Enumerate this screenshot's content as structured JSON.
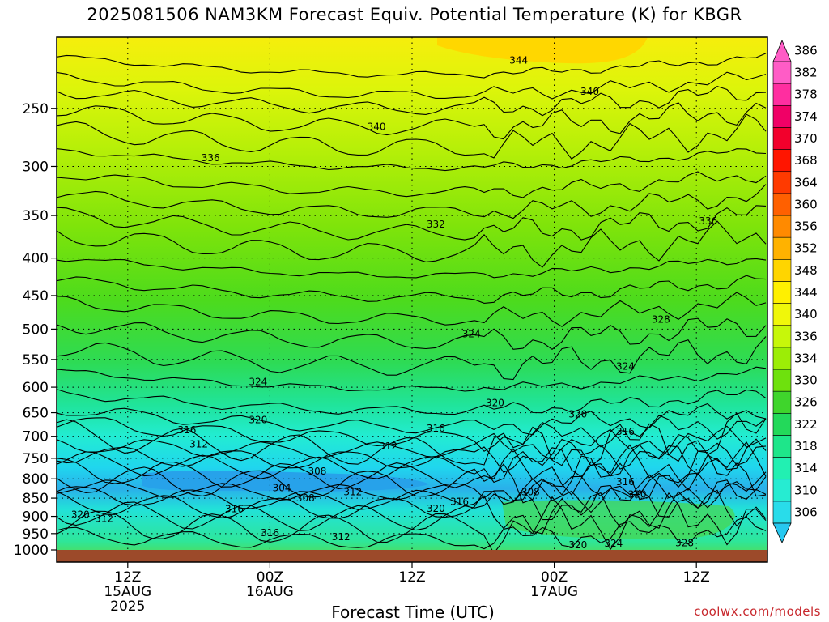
{
  "chart_data": {
    "type": "contour",
    "title": "2025081506 NAM3KM Forecast Equiv. Potential Temperature (K) for KBGR",
    "xlabel": "Forecast Time (UTC)",
    "ylabel": "",
    "y_scale": "log",
    "y_axis": "pressure (hPa), inverted",
    "ylim": [
      1000,
      200
    ],
    "y_ticks": [
      250,
      300,
      350,
      400,
      450,
      500,
      550,
      600,
      650,
      700,
      750,
      800,
      850,
      900,
      950,
      1000
    ],
    "x_ticks": [
      {
        "hour": 12,
        "line1": "12Z",
        "line2": "15AUG",
        "line3": "2025"
      },
      {
        "hour": 24,
        "line1": "00Z",
        "line2": "16AUG",
        "line3": ""
      },
      {
        "hour": 36,
        "line1": "12Z",
        "line2": "",
        "line3": ""
      },
      {
        "hour": 48,
        "line1": "00Z",
        "line2": "17AUG",
        "line3": ""
      },
      {
        "hour": 60,
        "line1": "12Z",
        "line2": "",
        "line3": ""
      }
    ],
    "xlim": [
      6,
      66
    ],
    "grid": true,
    "colorbar": {
      "levels": [
        306,
        310,
        314,
        318,
        322,
        326,
        330,
        334,
        336,
        340,
        344,
        348,
        352,
        356,
        360,
        364,
        368,
        370,
        374,
        378,
        382,
        386
      ],
      "colors": [
        "#27c8f0",
        "#29dcea",
        "#26ecd2",
        "#22f0b2",
        "#1ee68a",
        "#23d95a",
        "#3fd52c",
        "#6ee10d",
        "#9ced06",
        "#c7f70a",
        "#f0f70a",
        "#fff000",
        "#ffd500",
        "#ffb200",
        "#ff8a00",
        "#ff6000",
        "#ff3a00",
        "#ff1500",
        "#f2002c",
        "#f00066",
        "#ff2ea0",
        "#ff5cc6"
      ]
    },
    "contour_labels": [
      {
        "value": "344",
        "hour": 45,
        "p": 215
      },
      {
        "value": "340",
        "hour": 33,
        "p": 265
      },
      {
        "value": "340",
        "hour": 51,
        "p": 237
      },
      {
        "value": "336",
        "hour": 19,
        "p": 292
      },
      {
        "value": "336",
        "hour": 61,
        "p": 356
      },
      {
        "value": "332",
        "hour": 38,
        "p": 360
      },
      {
        "value": "328",
        "hour": 57,
        "p": 485
      },
      {
        "value": "324",
        "hour": 41,
        "p": 508
      },
      {
        "value": "324",
        "hour": 54,
        "p": 562
      },
      {
        "value": "324",
        "hour": 23,
        "p": 590
      },
      {
        "value": "320",
        "hour": 43,
        "p": 630
      },
      {
        "value": "320",
        "hour": 50,
        "p": 653
      },
      {
        "value": "320",
        "hour": 23,
        "p": 665
      },
      {
        "value": "316",
        "hour": 17,
        "p": 686
      },
      {
        "value": "316",
        "hour": 38,
        "p": 683
      },
      {
        "value": "316",
        "hour": 54,
        "p": 690
      },
      {
        "value": "312",
        "hour": 18,
        "p": 718
      },
      {
        "value": "312",
        "hour": 34,
        "p": 722
      },
      {
        "value": "308",
        "hour": 28,
        "p": 781
      },
      {
        "value": "304",
        "hour": 25,
        "p": 823
      },
      {
        "value": "312",
        "hour": 31,
        "p": 834
      },
      {
        "value": "308",
        "hour": 27,
        "p": 850
      },
      {
        "value": "308",
        "hour": 46,
        "p": 834
      },
      {
        "value": "316",
        "hour": 54,
        "p": 808
      },
      {
        "value": "320",
        "hour": 55,
        "p": 840
      },
      {
        "value": "316",
        "hour": 21,
        "p": 880
      },
      {
        "value": "320",
        "hour": 38,
        "p": 878
      },
      {
        "value": "316",
        "hour": 40,
        "p": 860
      },
      {
        "value": "320",
        "hour": 8,
        "p": 895
      },
      {
        "value": "312",
        "hour": 10,
        "p": 907
      },
      {
        "value": "316",
        "hour": 24,
        "p": 948
      },
      {
        "value": "312",
        "hour": 30,
        "p": 960
      },
      {
        "value": "320",
        "hour": 50,
        "p": 985
      },
      {
        "value": "324",
        "hour": 53,
        "p": 980
      },
      {
        "value": "328",
        "hour": 59,
        "p": 979
      }
    ]
  },
  "credit": "coolwx.com/models"
}
